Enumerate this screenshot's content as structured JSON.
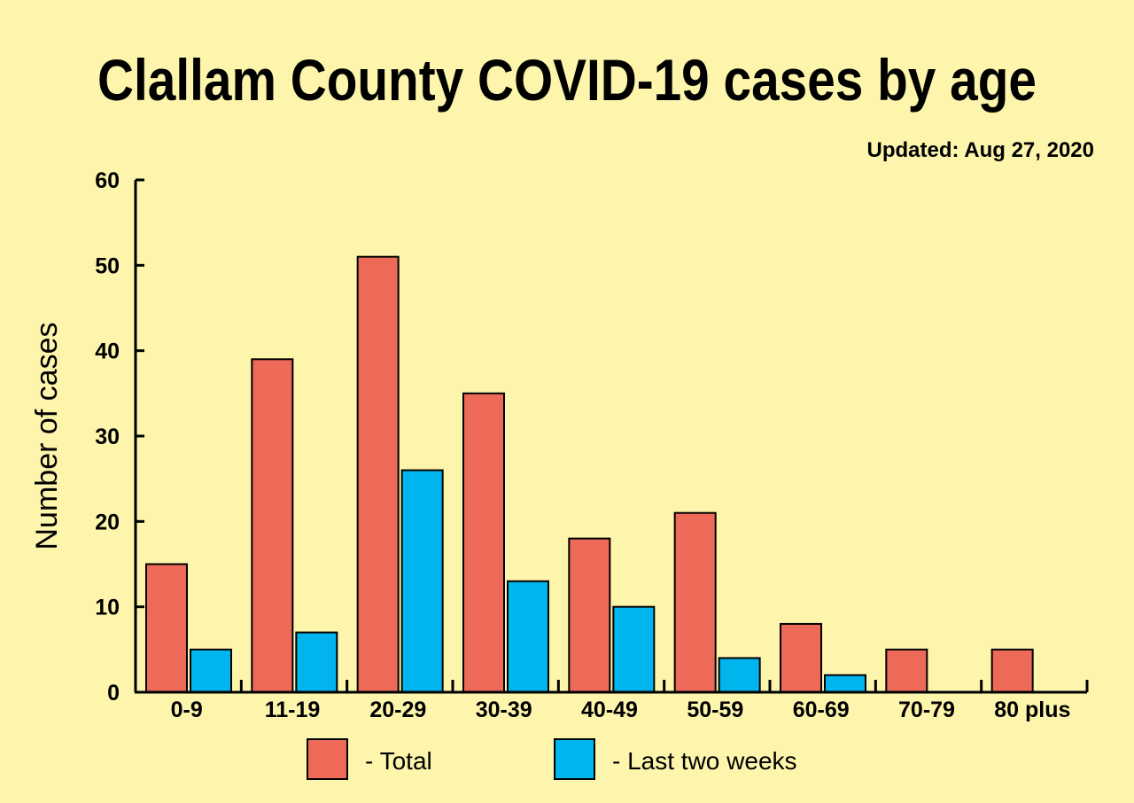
{
  "chart_data": {
    "type": "bar",
    "title": "Clallam County COVID-19 cases by age",
    "subtitle": "Updated: Aug 27, 2020",
    "xlabel": "",
    "ylabel": "Number of cases",
    "ylim": [
      0,
      60
    ],
    "yticks": [
      0,
      10,
      20,
      30,
      40,
      50,
      60
    ],
    "grid": false,
    "legend_position": "bottom",
    "categories": [
      "0-9",
      "11-19",
      "20-29",
      "30-39",
      "40-49",
      "50-59",
      "60-69",
      "70-79",
      "80 plus"
    ],
    "series": [
      {
        "name": "- Total",
        "color": "#EE6A58",
        "values": [
          15,
          39,
          51,
          35,
          18,
          21,
          8,
          5,
          5
        ]
      },
      {
        "name": "- Last two weeks",
        "color": "#00B5EE",
        "values": [
          5,
          7,
          26,
          13,
          10,
          4,
          2,
          0,
          0
        ]
      }
    ]
  },
  "background_color": "#FDF5AB"
}
